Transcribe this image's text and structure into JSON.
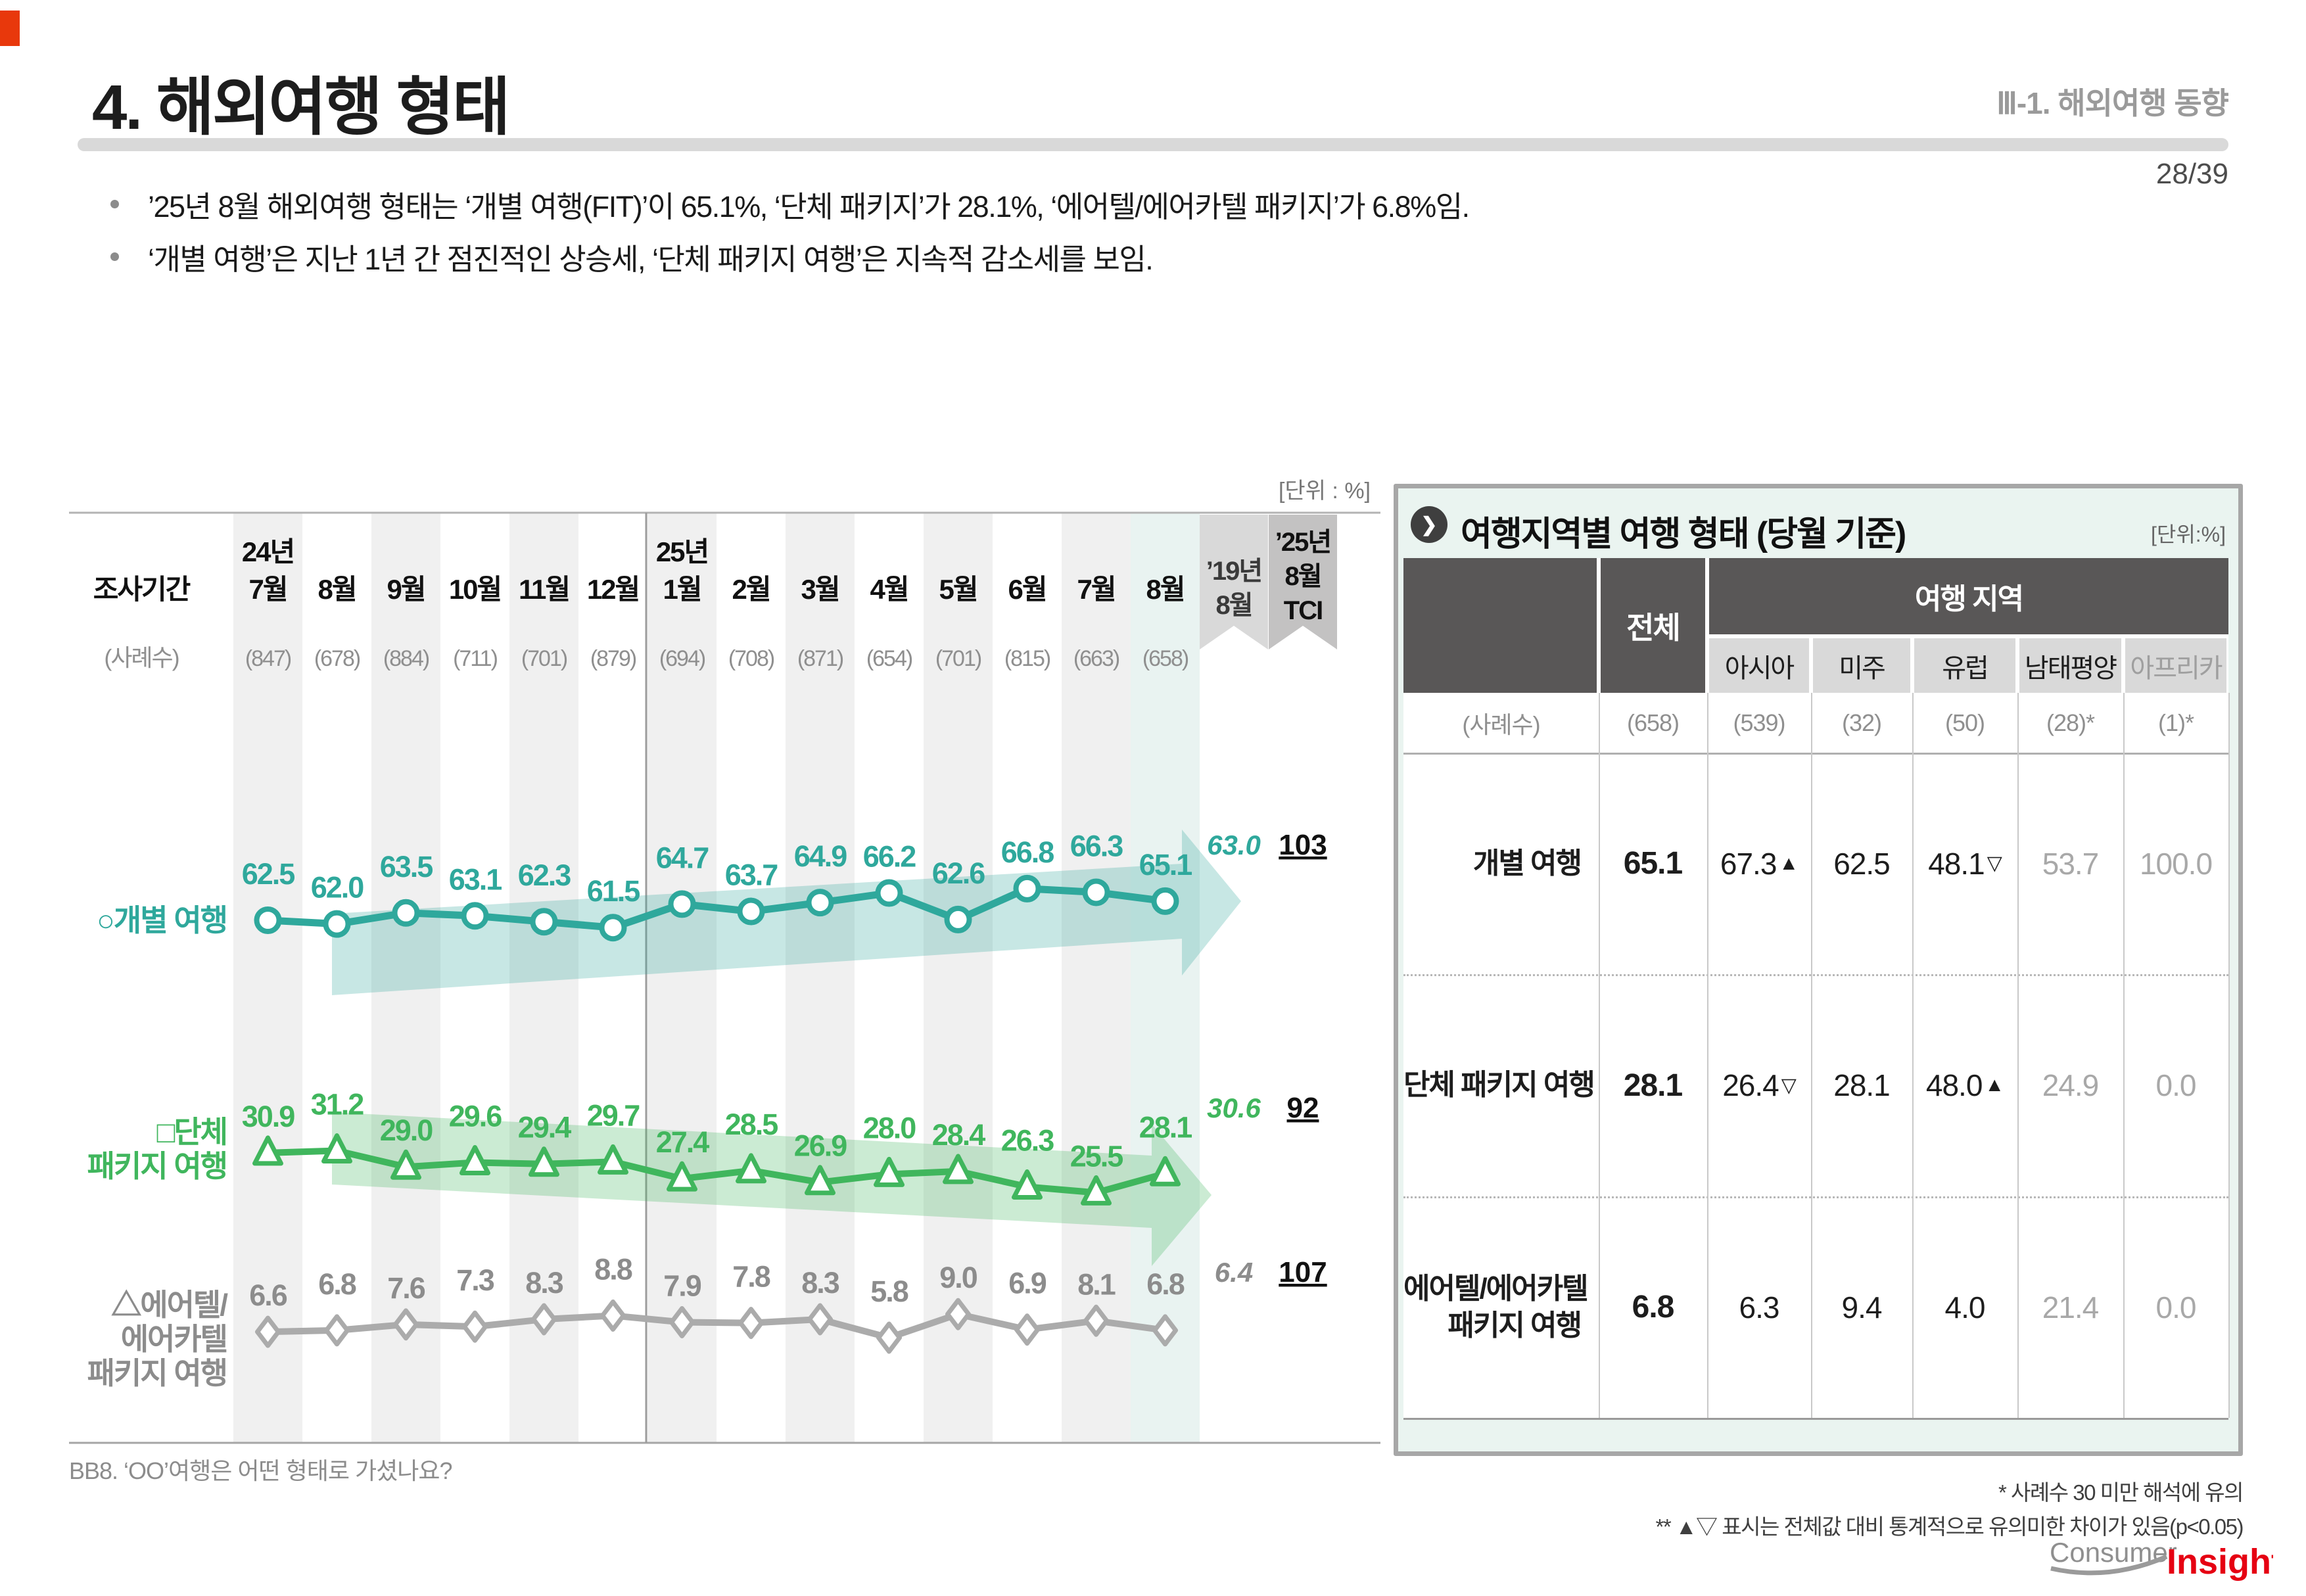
{
  "page": {
    "corner_color": "#e8380c",
    "title": "4. 해외여행 형태",
    "section": "Ⅲ-1. 해외여행 동향",
    "page_number": "28/39",
    "bullets": [
      "’25년 8월 해외여행 형태는 ‘개별 여행(FIT)’이 65.1%, ‘단체 패키지’가 28.1%, ‘에어텔/에어카텔 패키지’가 6.8%임.",
      "‘개별 여행’은 지난 1년 간 점진적인 상승세, ‘단체 패키지 여행’은 지속적 감소세를 보임."
    ],
    "question": "BB8. ‘OO’여행은 어떤 형태로 가셨나요?"
  },
  "chart_data": {
    "type": "line",
    "unit_label": "[단위 : %]",
    "x_header": "조사기간",
    "x_subheader": "(사례수)",
    "year_labels": [
      {
        "text": "24년",
        "month_index": 0
      },
      {
        "text": "25년",
        "month_index": 6
      }
    ],
    "categories": [
      "7월",
      "8월",
      "9월",
      "10월",
      "11월",
      "12월",
      "1월",
      "2월",
      "3월",
      "4월",
      "5월",
      "6월",
      "7월",
      "8월"
    ],
    "sample_sizes": [
      "(847)",
      "(678)",
      "(884)",
      "(711)",
      "(701)",
      "(879)",
      "(694)",
      "(708)",
      "(871)",
      "(654)",
      "(701)",
      "(815)",
      "(663)",
      "(658)"
    ],
    "ref_column_label": [
      "’19년",
      "8월"
    ],
    "tci_column_label": [
      "’25년",
      "8월",
      "TCI"
    ],
    "series": [
      {
        "name": "개별 여행",
        "name_lines": [
          "○개별 여행"
        ],
        "marker": "circle",
        "color": "#2fa89c",
        "label_color": "#2fa89c",
        "values": [
          62.5,
          62.0,
          63.5,
          63.1,
          62.3,
          61.5,
          64.7,
          63.7,
          64.9,
          66.2,
          62.6,
          66.8,
          66.3,
          65.1
        ],
        "ref_value": "63.0",
        "tci_value": "103",
        "trend": "up"
      },
      {
        "name": "단체 패키지 여행",
        "name_lines": [
          "□단체",
          "패키지 여행"
        ],
        "marker": "triangle",
        "color": "#40b65d",
        "label_color": "#40b65d",
        "values": [
          30.9,
          31.2,
          29.0,
          29.6,
          29.4,
          29.7,
          27.4,
          28.5,
          26.9,
          28.0,
          28.4,
          26.3,
          25.5,
          28.1
        ],
        "ref_value": "30.6",
        "tci_value": "92",
        "trend": "down"
      },
      {
        "name": "에어텔/에어카텔 패키지 여행",
        "name_lines": [
          "△에어텔/",
          "에어카텔",
          "패키지 여행"
        ],
        "marker": "diamond",
        "color": "#ababab",
        "label_color": "#8c8c8c",
        "values": [
          6.6,
          6.8,
          7.6,
          7.3,
          8.3,
          8.8,
          7.9,
          7.8,
          8.3,
          5.8,
          9.0,
          6.9,
          8.1,
          6.8
        ],
        "ref_value": "6.4",
        "tci_value": "107",
        "trend": null
      }
    ]
  },
  "table": {
    "title": "여행지역별 여행 형태 (당월 기준)",
    "unit_label": "[단위:%]",
    "total_header": "전체",
    "region_header": "여행 지역",
    "region_columns": [
      "아시아",
      "미주",
      "유럽",
      "남태평양",
      "아프리카"
    ],
    "sample_row": {
      "label": "(사례수)",
      "values": [
        "(658)",
        "(539)",
        "(32)",
        "(50)",
        "(28)*",
        "(1)*"
      ]
    },
    "rows": [
      {
        "label_lines": [
          "개별 여행"
        ],
        "values": [
          "65.1",
          "67.3▲",
          "62.5",
          "48.1▽",
          "53.7",
          "100.0"
        ]
      },
      {
        "label_lines": [
          "단체 패키지 여행"
        ],
        "values": [
          "28.1",
          "26.4▽",
          "28.1",
          "48.0▲",
          "24.9",
          "0.0"
        ]
      },
      {
        "label_lines": [
          "에어텔/에어카텔",
          "패키지 여행"
        ],
        "values": [
          "6.8",
          "6.3",
          "9.4",
          "4.0",
          "21.4",
          "0.0"
        ]
      }
    ],
    "footnotes": [
      "* 사례수 30 미만 해석에 유의",
      "** ▲▽ 표시는 전체값 대비 통계적으로 유의미한 차이가 있음(p<0.05)"
    ]
  },
  "logo": {
    "part1": "Consumer",
    "part2": "Insight",
    "accent_color": "#e60012"
  }
}
